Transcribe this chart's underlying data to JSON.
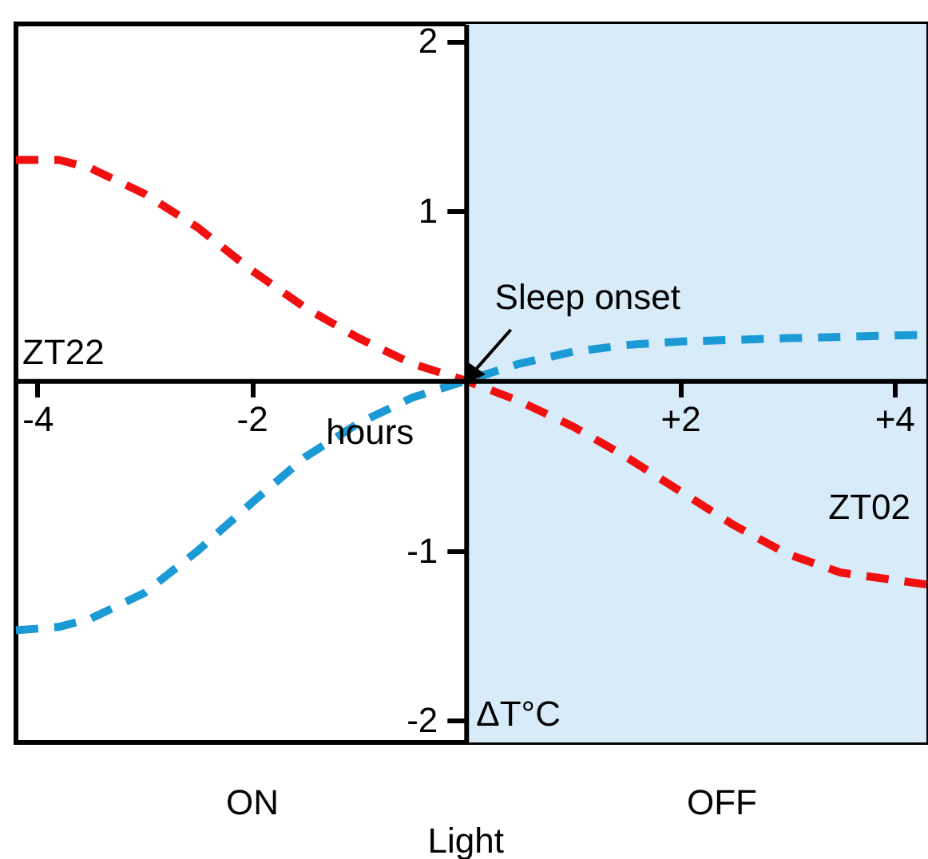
{
  "chart_data": {
    "type": "line",
    "xlabel": "hours",
    "ylabel": "ΔT°C",
    "xlim": [
      -4.2,
      4.3
    ],
    "ylim": [
      -2.13,
      2.1
    ],
    "xticks": [
      -4,
      -2,
      {
        "value": 2,
        "label": "+2"
      },
      {
        "value": 4,
        "label": "+4"
      }
    ],
    "yticks": [
      -2,
      -1,
      1,
      2
    ],
    "line_style": "dashed",
    "series": [
      {
        "color": "#f01010",
        "x": [
          -4.2,
          -3.8,
          -3.5,
          -3.0,
          -2.5,
          -2.0,
          -1.5,
          -1.0,
          -0.5,
          0,
          0.5,
          1.0,
          1.5,
          2.0,
          2.5,
          3.0,
          3.5,
          4.3
        ],
        "values": [
          1.3,
          1.3,
          1.25,
          1.1,
          0.9,
          0.65,
          0.43,
          0.25,
          0.1,
          0,
          -0.12,
          -0.27,
          -0.45,
          -0.65,
          -0.85,
          -1.02,
          -1.13,
          -1.2
        ]
      },
      {
        "color": "#1b9ad6",
        "x": [
          -4.2,
          -3.8,
          -3.5,
          -3.0,
          -2.5,
          -2.0,
          -1.5,
          -1.0,
          -0.5,
          0,
          0.5,
          1.0,
          1.5,
          2.0,
          3.0,
          4.3
        ],
        "values": [
          -1.47,
          -1.45,
          -1.4,
          -1.25,
          -1.0,
          -0.72,
          -0.45,
          -0.25,
          -0.1,
          0,
          0.1,
          0.17,
          0.21,
          0.23,
          0.25,
          0.27
        ]
      }
    ],
    "bands": [
      {
        "axis": "x",
        "from": 0,
        "to": 4.3,
        "color": "#d8ebf9"
      }
    ],
    "annotations": [
      "ZT22",
      "ZT02",
      {
        "text": "Sleep onset",
        "x": 0,
        "y": 0
      },
      "ON",
      "OFF",
      "Light"
    ]
  }
}
